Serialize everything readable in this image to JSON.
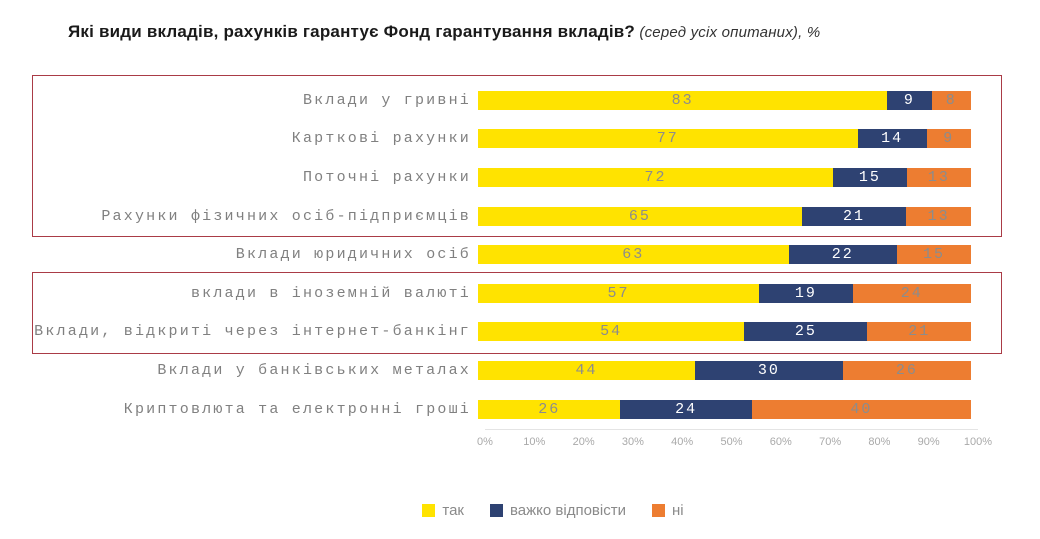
{
  "title": {
    "main": "Які види вкладів, рахунків гарантує Фонд гарантування вкладів?",
    "suffix": " (серед усіх опитаних), %"
  },
  "chart_data": {
    "type": "bar",
    "orientation": "horizontal",
    "stacked": true,
    "normalized_to_100": true,
    "categories": [
      "Вклади у гривні",
      "Карткові рахунки",
      "Поточні рахунки",
      "Рахунки фізичних осіб-підприємців",
      "Вклади юридичних осіб",
      "вклади в іноземній валюті",
      "Вклади, відкриті через інтернет-банкінг",
      "Вклади у банківських металах",
      "Криптовлюта та електронні гроші"
    ],
    "series": [
      {
        "name": "так",
        "color": "#ffe300",
        "value_text_color": "#8c8c8c",
        "values": [
          83,
          77,
          72,
          65,
          63,
          57,
          54,
          44,
          26
        ]
      },
      {
        "name": "важко відповісти",
        "color": "#2e4272",
        "value_text_color": "#ffffff",
        "values": [
          9,
          14,
          15,
          21,
          22,
          19,
          25,
          30,
          24
        ]
      },
      {
        "name": "ні",
        "color": "#ed7d31",
        "value_text_color": "#8c8c8c",
        "values": [
          8,
          9,
          13,
          13,
          15,
          24,
          21,
          26,
          40
        ]
      }
    ],
    "x_axis": {
      "range": [
        0,
        100
      ],
      "ticks": [
        "0%",
        "10%",
        "20%",
        "30%",
        "40%",
        "50%",
        "60%",
        "70%",
        "80%",
        "90%",
        "100%"
      ]
    },
    "legend": {
      "position": "bottom",
      "entries": [
        "так",
        "важко відповісти",
        "ні"
      ]
    },
    "highlight_boxes": [
      {
        "rows_enclosed": [
          0,
          1,
          2,
          3
        ],
        "border_color": "#aa3b46"
      },
      {
        "rows_enclosed": [
          5,
          6
        ],
        "border_color": "#aa3b46"
      }
    ]
  }
}
